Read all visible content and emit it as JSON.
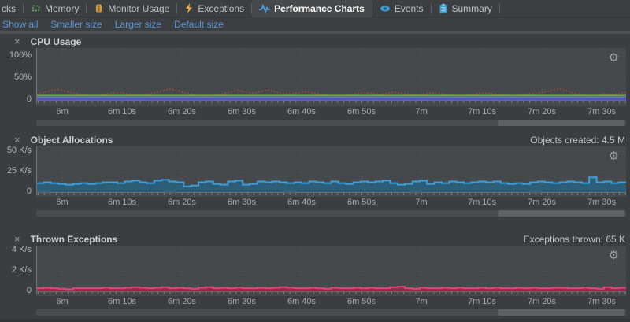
{
  "tabs": [
    {
      "label": "cks"
    },
    {
      "label": "Memory"
    },
    {
      "label": "Monitor Usage"
    },
    {
      "label": "Exceptions"
    },
    {
      "label": "Performance Charts",
      "active": true
    },
    {
      "label": "Events"
    },
    {
      "label": "Summary"
    }
  ],
  "links": [
    "Show all",
    "Smaller size",
    "Larger size",
    "Default size"
  ],
  "icons": {
    "close": "×",
    "gear": "⚙"
  },
  "colors": {
    "link_blue": "#5b97d7",
    "cpu_line_red": "#ca4840",
    "gc_line_green": "#6ca83e",
    "kernel_band_purple": "#4f58b8",
    "alloc_blue_edge": "#3f9fd8",
    "alloc_blue_fill": "#2d5e79",
    "exception_pink_edge": "#df4679",
    "exception_pink_fill": "#8e2f4c"
  },
  "chart_data": [
    {
      "id": "cpu-usage",
      "type": "line",
      "title": "CPU Usage",
      "stat": "",
      "ylim": [
        0,
        100
      ],
      "grid": true,
      "y_ticks": [
        {
          "label": "100%",
          "v": 100
        },
        {
          "label": "50%",
          "v": 50
        },
        {
          "label": "0",
          "v": 0
        }
      ],
      "x_labels": [
        "6m",
        "6m 10s",
        "6m 20s",
        "6m 30s",
        "6m 40s",
        "6m 50s",
        "7m",
        "7m 10s",
        "7m 20s",
        "7m 30s"
      ],
      "series": [
        {
          "name": "red-dotted-line",
          "color": "#ca4840",
          "style": "dotted",
          "values": [
            14,
            17,
            21,
            24,
            20,
            16,
            12,
            10,
            9,
            12,
            15,
            17,
            14,
            11,
            10,
            13,
            17,
            22,
            25,
            21,
            16,
            12,
            9,
            7,
            10,
            14,
            18,
            22,
            18,
            15,
            19,
            23,
            19,
            15,
            13,
            16,
            19,
            16,
            13,
            11,
            9,
            7,
            10,
            14,
            17,
            15,
            12,
            15,
            18,
            15,
            12,
            10,
            13,
            16,
            14,
            11,
            9,
            8,
            11,
            14,
            16,
            14,
            12,
            10,
            9,
            11,
            13,
            15,
            18,
            22,
            26,
            21,
            16,
            11,
            8,
            10,
            13,
            12,
            14,
            17
          ]
        },
        {
          "name": "green-line",
          "color": "#6ca83e",
          "style": "solid",
          "const": 10
        },
        {
          "name": "purple-band",
          "color": "#6570d8",
          "fill": "#4f58b8",
          "const": 6.5,
          "band": true
        }
      ]
    },
    {
      "id": "object-allocations",
      "type": "step-area",
      "title": "Object Allocations",
      "stat": "Objects created: 4.5 M",
      "ylim": [
        0,
        50
      ],
      "grid": true,
      "y_ticks": [
        {
          "label": "50 K/s",
          "v": 50
        },
        {
          "label": "25 K/s",
          "v": 25
        },
        {
          "label": "0",
          "v": 0
        }
      ],
      "x_labels": [
        "6m",
        "6m 10s",
        "6m 20s",
        "6m 30s",
        "6m 40s",
        "6m 50s",
        "7m",
        "7m 10s",
        "7m 20s",
        "7m 30s"
      ],
      "series": [
        {
          "name": "allocation-rate",
          "edge": "#3f9fd8",
          "fill": "#2d5e79",
          "values": [
            11,
            12,
            11,
            10,
            9,
            10,
            11,
            10,
            11,
            12,
            12,
            11,
            13,
            14,
            12,
            11,
            14,
            15,
            13,
            12,
            7,
            8,
            12,
            13,
            10,
            9,
            13,
            14,
            9,
            10,
            13,
            12,
            13,
            12,
            11,
            12,
            11,
            13,
            12,
            11,
            13,
            11,
            10,
            12,
            13,
            12,
            13,
            14,
            11,
            9,
            10,
            13,
            14,
            10,
            12,
            11,
            13,
            12,
            11,
            12,
            13,
            12,
            13,
            11,
            10,
            11,
            10,
            12,
            13,
            12,
            11,
            12,
            13,
            12,
            11,
            18,
            12,
            13,
            11,
            12
          ]
        }
      ]
    },
    {
      "id": "thrown-exceptions",
      "type": "step-area",
      "title": "Thrown Exceptions",
      "stat": "Exceptions thrown: 65 K",
      "ylim": [
        0,
        4
      ],
      "grid": true,
      "y_ticks": [
        {
          "label": "4 K/s",
          "v": 4
        },
        {
          "label": "2 K/s",
          "v": 2
        },
        {
          "label": "0",
          "v": 0
        }
      ],
      "x_labels": [
        "6m",
        "6m 10s",
        "6m 20s",
        "6m 30s",
        "6m 40s",
        "6m 50s",
        "7m",
        "7m 10s",
        "7m 20s",
        "7m 30s"
      ],
      "series": [
        {
          "name": "exception-rate",
          "edge": "#df4679",
          "fill": "#8e2f4c",
          "values": [
            0.3,
            0.35,
            0.3,
            0.25,
            0.2,
            0.3,
            0.3,
            0.3,
            0.3,
            0.35,
            0.3,
            0.3,
            0.35,
            0.4,
            0.35,
            0.3,
            0.35,
            0.4,
            0.3,
            0.35,
            0.3,
            0.25,
            0.35,
            0.4,
            0.3,
            0.35,
            0.3,
            0.35,
            0.3,
            0.3,
            0.35,
            0.3,
            0.35,
            0.4,
            0.35,
            0.3,
            0.3,
            0.35,
            0.3,
            0.25,
            0.35,
            0.3,
            0.3,
            0.35,
            0.3,
            0.35,
            0.3,
            0.3,
            0.4,
            0.45,
            0.3,
            0.25,
            0.35,
            0.3,
            0.3,
            0.35,
            0.3,
            0.35,
            0.3,
            0.3,
            0.35,
            0.3,
            0.35,
            0.3,
            0.3,
            0.35,
            0.3,
            0.35,
            0.3,
            0.3,
            0.35,
            0.35,
            0.3,
            0.3,
            0.35,
            0.3,
            0.25,
            0.4,
            0.3,
            0.35
          ]
        }
      ]
    }
  ]
}
